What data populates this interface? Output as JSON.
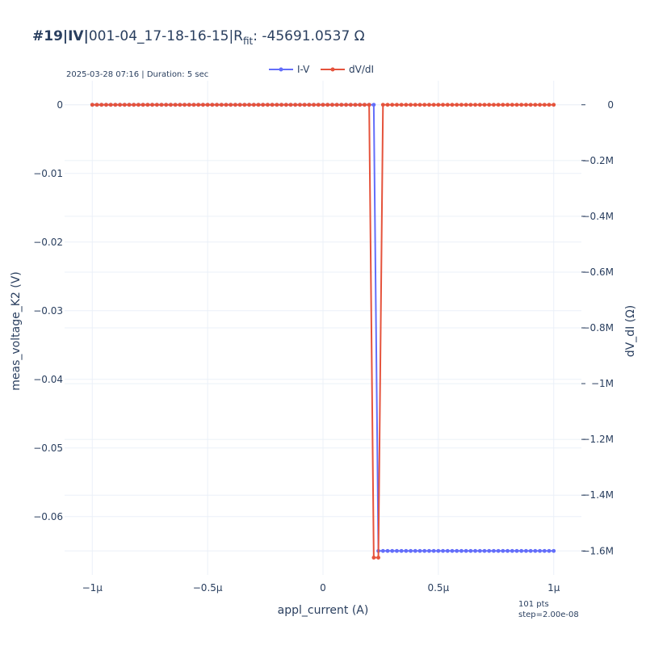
{
  "title": {
    "prefix": "#19|IV|",
    "name": "001-04_17-18-16-15|R",
    "subscript": "fit",
    "value": ": -45691.0537 Ω"
  },
  "subtitle": "2025-03-28 07:16 | Duration: 5 sec",
  "footnote": {
    "points": "101 pts",
    "step": "step=2.00e-08"
  },
  "colors": {
    "iv": "#636efa",
    "dvdi": "#e5533c",
    "grid": "#ebf0f8",
    "text": "#2a3f5f"
  },
  "chart_data": {
    "type": "line",
    "x_label": "appl_current (A)",
    "y_label": "meas_voltage_K2 (V)",
    "y2_label": "dV_dI (Ω)",
    "x_ticks": [
      {
        "value": -1e-06,
        "label": "−1µ"
      },
      {
        "value": -5e-07,
        "label": "−0.5µ"
      },
      {
        "value": 0,
        "label": "0"
      },
      {
        "value": 5e-07,
        "label": "0.5µ"
      },
      {
        "value": 1e-06,
        "label": "1µ"
      }
    ],
    "y_ticks": [
      {
        "value": 0,
        "label": "0"
      },
      {
        "value": -0.01,
        "label": "−0.01"
      },
      {
        "value": -0.02,
        "label": "−0.02"
      },
      {
        "value": -0.03,
        "label": "−0.03"
      },
      {
        "value": -0.04,
        "label": "−0.04"
      },
      {
        "value": -0.05,
        "label": "−0.05"
      },
      {
        "value": -0.06,
        "label": "−0.06"
      }
    ],
    "y2_ticks": [
      {
        "value": 0,
        "label": "0"
      },
      {
        "value": -200000,
        "label": "−0.2M"
      },
      {
        "value": -400000,
        "label": "−0.4M"
      },
      {
        "value": -600000,
        "label": "−0.6M"
      },
      {
        "value": -800000,
        "label": "−0.8M"
      },
      {
        "value": -1000000,
        "label": "−1M"
      },
      {
        "value": -1200000,
        "label": "−1.2M"
      },
      {
        "value": -1400000,
        "label": "−1.4M"
      },
      {
        "value": -1600000,
        "label": "−1.6M"
      }
    ],
    "x_range": [
      -1.12e-06,
      1.12e-06
    ],
    "y_range": [
      -0.0685,
      0.0035
    ],
    "y2_range": [
      -1700000,
      0
    ],
    "grid": true,
    "legend_position": "top-center",
    "series": [
      {
        "name": "I-V",
        "axis": "y",
        "color": "#636efa",
        "x": {
          "start": -1e-06,
          "step": 2e-08,
          "count": 101
        },
        "y_piecewise": [
          {
            "x_from": -1e-06,
            "x_to": 2.2e-07,
            "y": 0
          },
          {
            "x_from": 2.4e-07,
            "x_to": 1e-06,
            "y": -0.065
          }
        ]
      },
      {
        "name": "dV/dI",
        "axis": "y2",
        "color": "#e5533c",
        "x": {
          "start": -1e-06,
          "step": 2e-08,
          "count": 101
        },
        "y_piecewise": [
          {
            "x_from": -1e-06,
            "x_to": 2e-07,
            "y": 0
          },
          {
            "x_from": 2.2e-07,
            "x_to": 2.4e-07,
            "y": -1624000
          },
          {
            "x_from": 2.6e-07,
            "x_to": 1e-06,
            "y": 0
          }
        ]
      }
    ]
  }
}
